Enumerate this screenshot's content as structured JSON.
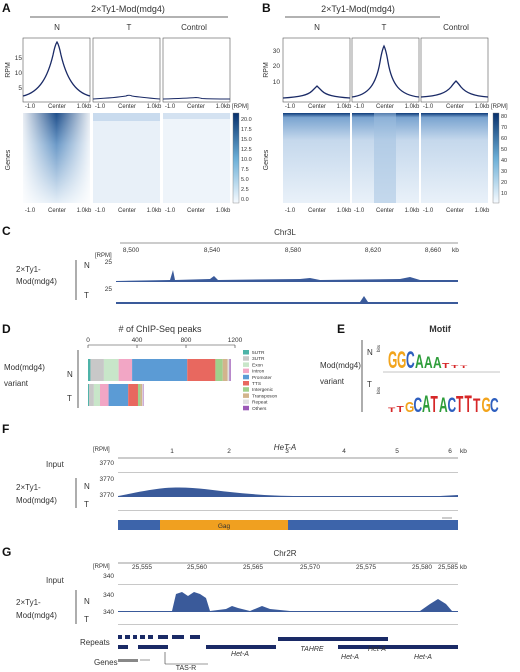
{
  "panels": {
    "A": {
      "letter": "A",
      "title": "2×Ty1-Mod(mdg4)",
      "columns": [
        "N",
        "T",
        "Control"
      ],
      "rpm_label": "RPM",
      "genes_label": "Genes",
      "heatmap_unit": "[RPM]",
      "x_ticks": [
        "-1.0",
        "Center",
        "1.0kb"
      ],
      "colorbar_ticks": [
        "20.0",
        "17.5",
        "15.0",
        "12.5",
        "10.0",
        "7.5",
        "5.0",
        "2.5",
        "0.0"
      ]
    },
    "B": {
      "letter": "B",
      "title": "2×Ty1-Mod(mdg4)",
      "columns": [
        "N",
        "T",
        "Control"
      ],
      "rpm_label": "RPM",
      "genes_label": "Genes",
      "heatmap_unit": "[RPM]",
      "x_ticks": [
        "-1.0",
        "Center",
        "1.0kb"
      ],
      "colorbar_ticks": [
        "80",
        "70",
        "60",
        "50",
        "40",
        "30",
        "20",
        "10"
      ]
    },
    "C": {
      "letter": "C",
      "chrom": "Chr3L",
      "unit": "[RPM]",
      "kb": "kb",
      "ticks": [
        "8,500",
        "8,540",
        "8,580",
        "8,620",
        "8,660"
      ],
      "track_label_1": "2×Ty1-",
      "track_label_2": "Mod(mdg4)",
      "tracks": [
        {
          "name": "N",
          "max": "25"
        },
        {
          "name": "T",
          "max": "25"
        }
      ]
    },
    "D": {
      "letter": "D",
      "title": "# of ChIP-Seq peaks",
      "ticks": [
        "0",
        "400",
        "800",
        "1200"
      ],
      "label_1": "Mod(mdg4)",
      "label_2": "variant",
      "legend": [
        "5UTR",
        "3UTR",
        "Exon",
        "Intron",
        "Promoter",
        "TTS",
        "Intergenic",
        "Transposon",
        "Repeat",
        "Others"
      ]
    },
    "E": {
      "letter": "E",
      "title": "Motif",
      "label_1": "Mod(mdg4)",
      "label_2": "variant",
      "rows": [
        "N",
        "T"
      ],
      "bits": "bits",
      "motif_N": [
        "G",
        "G",
        "C",
        "A",
        "A",
        "A",
        "T",
        "T",
        "T"
      ],
      "motif_T": [
        "T",
        "T",
        "G",
        "C",
        "A",
        "T",
        "A",
        "C",
        "T",
        "T",
        "T",
        "G",
        "C"
      ]
    },
    "F": {
      "letter": "F",
      "title": "HeT-A",
      "unit": "[RPM]",
      "kb": "kb",
      "ticks": [
        "1",
        "2",
        "3",
        "4",
        "5",
        "6"
      ],
      "input_label": "Input",
      "input_max": "3770",
      "track_label_1": "2×Ty1-",
      "track_label_2": "Mod(mdg4)",
      "tracks": [
        {
          "name": "N",
          "max": "3770"
        },
        {
          "name": "T",
          "max": "3770"
        }
      ],
      "gene_label": "Gag"
    },
    "G": {
      "letter": "G",
      "chrom": "Chr2R",
      "unit": "[RPM]",
      "kb": "kb",
      "ticks": [
        "25,555",
        "25,560",
        "25,565",
        "25,570",
        "25,575",
        "25,580",
        "25,585"
      ],
      "input_label": "Input",
      "input_max": "340",
      "track_label_1": "2×Ty1-",
      "track_label_2": "Mod(mdg4)",
      "tracks": [
        {
          "name": "N",
          "max": "340"
        },
        {
          "name": "T",
          "max": "340"
        }
      ],
      "repeats_label": "Repeats",
      "genes_label": "Genes",
      "repeat_names": [
        "Het-A",
        "TAHRE",
        "Het-A",
        "Het-A",
        "Het-A"
      ],
      "gene_name": "TAS-R"
    }
  },
  "colors": {
    "navy": "#1a2a66",
    "track": "#3a5a9a",
    "gag": "#f0a020",
    "gene_bar": "#3d64aa"
  },
  "chart_data": [
    {
      "type": "bar",
      "title": "# of ChIP-Seq peaks",
      "categories": [
        "N",
        "T"
      ],
      "xlim": [
        0,
        1200
      ],
      "series": [
        {
          "name": "5UTR",
          "values": [
            20,
            8
          ]
        },
        {
          "name": "3UTR",
          "values": [
            110,
            40
          ]
        },
        {
          "name": "Exon",
          "values": [
            120,
            50
          ]
        },
        {
          "name": "Intron",
          "values": [
            110,
            70
          ]
        },
        {
          "name": "Promoter",
          "values": [
            450,
            160
          ]
        },
        {
          "name": "TTS",
          "values": [
            230,
            80
          ]
        },
        {
          "name": "Intergenic",
          "values": [
            60,
            20
          ]
        },
        {
          "name": "Transposon",
          "values": [
            40,
            15
          ]
        },
        {
          "name": "Repeat",
          "values": [
            15,
            5
          ]
        },
        {
          "name": "Others",
          "values": [
            10,
            5
          ]
        }
      ]
    }
  ]
}
